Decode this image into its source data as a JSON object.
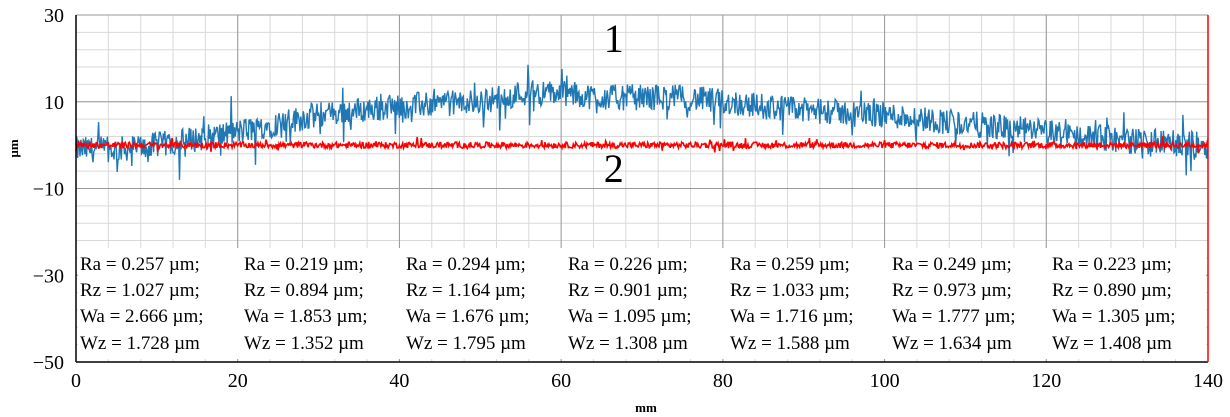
{
  "chart_data": {
    "type": "line",
    "xlabel": "mm",
    "ylabel": "µm",
    "xlim": [
      0,
      140
    ],
    "ylim": [
      -50,
      30
    ],
    "x_ticks": [
      "0",
      "20",
      "40",
      "60",
      "80",
      "100",
      "120",
      "140"
    ],
    "y_ticks": [
      "30",
      "10",
      "−10",
      "−30",
      "−50"
    ],
    "grid": true,
    "series": [
      {
        "name": "1",
        "color": "#1f77b4",
        "description_values": {
          "x": [
            0,
            5,
            10,
            20,
            30,
            40,
            50,
            55,
            60,
            65,
            70,
            75,
            80,
            90,
            100,
            110,
            120,
            130,
            140
          ],
          "y": [
            -1,
            -1,
            0,
            3,
            7,
            9,
            10,
            12,
            12,
            11,
            11,
            11,
            10,
            8,
            7,
            5,
            3,
            1,
            0
          ]
        }
      },
      {
        "name": "2",
        "color": "#ff0000",
        "description_values": {
          "x": [
            0,
            140
          ],
          "y": [
            0,
            0
          ]
        }
      }
    ],
    "curve_labels": [
      "1",
      "2"
    ],
    "metrics_table": [
      [
        "Ra = 0.257 µm;",
        "Ra = 0.219 µm;",
        "Ra = 0.294 µm;",
        "Ra = 0.226 µm;",
        "Ra = 0.259 µm;",
        "Ra = 0.249 µm;",
        "Ra = 0.223 µm;"
      ],
      [
        "Rz = 1.027 µm;",
        "Rz = 0.894 µm;",
        "Rz = 1.164 µm;",
        "Rz = 0.901 µm;",
        "Rz = 1.033 µm;",
        "Rz = 0.973 µm;",
        "Rz = 0.890 µm;"
      ],
      [
        "Wa = 2.666 µm;",
        "Wa = 1.853 µm;",
        "Wa = 1.676 µm;",
        "Wa = 1.095 µm;",
        "Wa = 1.716 µm;",
        "Wa = 1.777 µm;",
        "Wa = 1.305 µm;"
      ],
      [
        "Wz = 1.728 µm",
        "Wz = 1.352 µm",
        "Wz = 1.795 µm",
        "Wz = 1.308 µm",
        "Wz = 1.588 µm",
        "Wz = 1.634 µm",
        "Wz = 1.408 µm"
      ]
    ]
  }
}
